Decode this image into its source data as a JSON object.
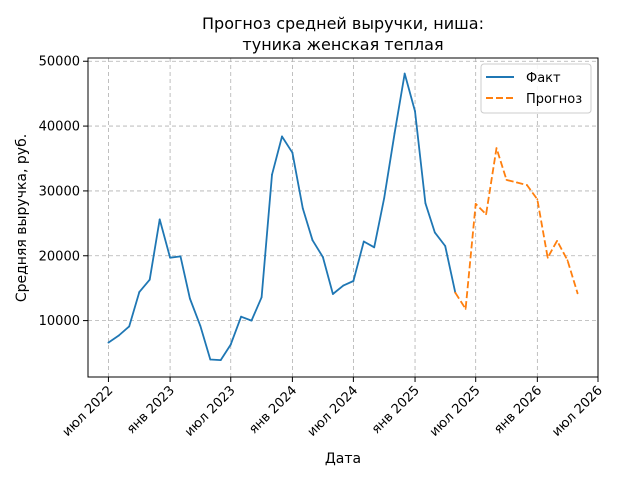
{
  "chart_data": {
    "type": "line",
    "title_lines": [
      "Прогноз средней выручки, ниша:",
      "туника женская теплая"
    ],
    "xlabel": "Дата",
    "ylabel": "Средняя выручка, руб.",
    "xlim": [
      "2022-05-01",
      "2026-07-01"
    ],
    "ylim": [
      1300,
      50500
    ],
    "x_ticks": [
      {
        "label": "июл 2022",
        "date": "2022-07-01"
      },
      {
        "label": "янв 2023",
        "date": "2023-01-01"
      },
      {
        "label": "июл 2023",
        "date": "2023-07-01"
      },
      {
        "label": "янв 2024",
        "date": "2024-01-01"
      },
      {
        "label": "июл 2024",
        "date": "2024-07-01"
      },
      {
        "label": "янв 2025",
        "date": "2025-01-01"
      },
      {
        "label": "июл 2025",
        "date": "2025-07-01"
      },
      {
        "label": "янв 2026",
        "date": "2026-01-01"
      },
      {
        "label": "июл 2026",
        "date": "2026-07-01"
      }
    ],
    "y_ticks": [
      {
        "label": "10000",
        "value": 10000
      },
      {
        "label": "20000",
        "value": 20000
      },
      {
        "label": "30000",
        "value": 30000
      },
      {
        "label": "40000",
        "value": 40000
      },
      {
        "label": "50000",
        "value": 50000
      }
    ],
    "grid": true,
    "legend_position": "top-right",
    "series": [
      {
        "name": "Факт",
        "color": "#1f77b4",
        "style": "solid",
        "points": [
          {
            "x": "2022-07-01",
            "y": 6600
          },
          {
            "x": "2022-08-01",
            "y": 7700
          },
          {
            "x": "2022-09-01",
            "y": 9100
          },
          {
            "x": "2022-10-01",
            "y": 14400
          },
          {
            "x": "2022-11-01",
            "y": 16300
          },
          {
            "x": "2022-12-01",
            "y": 25600
          },
          {
            "x": "2023-01-01",
            "y": 19700
          },
          {
            "x": "2023-02-01",
            "y": 19900
          },
          {
            "x": "2023-03-01",
            "y": 13400
          },
          {
            "x": "2023-04-01",
            "y": 9200
          },
          {
            "x": "2023-05-01",
            "y": 4000
          },
          {
            "x": "2023-06-01",
            "y": 3900
          },
          {
            "x": "2023-07-01",
            "y": 6300
          },
          {
            "x": "2023-08-01",
            "y": 10600
          },
          {
            "x": "2023-09-01",
            "y": 10000
          },
          {
            "x": "2023-10-01",
            "y": 13600
          },
          {
            "x": "2023-11-01",
            "y": 32500
          },
          {
            "x": "2023-12-01",
            "y": 38400
          },
          {
            "x": "2024-01-01",
            "y": 35900
          },
          {
            "x": "2024-02-01",
            "y": 27300
          },
          {
            "x": "2024-03-01",
            "y": 22400
          },
          {
            "x": "2024-04-01",
            "y": 19800
          },
          {
            "x": "2024-05-01",
            "y": 14100
          },
          {
            "x": "2024-06-01",
            "y": 15400
          },
          {
            "x": "2024-07-01",
            "y": 16100
          },
          {
            "x": "2024-08-01",
            "y": 22200
          },
          {
            "x": "2024-09-01",
            "y": 21300
          },
          {
            "x": "2024-10-01",
            "y": 28900
          },
          {
            "x": "2024-11-01",
            "y": 38900
          },
          {
            "x": "2024-12-01",
            "y": 48100
          },
          {
            "x": "2025-01-01",
            "y": 42300
          },
          {
            "x": "2025-02-01",
            "y": 28100
          },
          {
            "x": "2025-03-01",
            "y": 23600
          },
          {
            "x": "2025-04-01",
            "y": 21500
          },
          {
            "x": "2025-05-01",
            "y": 14300
          }
        ]
      },
      {
        "name": "Прогноз",
        "color": "#ff7f0e",
        "style": "dashed",
        "points": [
          {
            "x": "2025-05-01",
            "y": 14300
          },
          {
            "x": "2025-06-01",
            "y": 11800
          },
          {
            "x": "2025-07-01",
            "y": 28000
          },
          {
            "x": "2025-08-01",
            "y": 26400
          },
          {
            "x": "2025-09-01",
            "y": 36600
          },
          {
            "x": "2025-10-01",
            "y": 31700
          },
          {
            "x": "2025-11-01",
            "y": 31300
          },
          {
            "x": "2025-12-01",
            "y": 30900
          },
          {
            "x": "2026-01-01",
            "y": 28700
          },
          {
            "x": "2026-02-01",
            "y": 19700
          },
          {
            "x": "2026-03-01",
            "y": 22300
          },
          {
            "x": "2026-04-01",
            "y": 19300
          },
          {
            "x": "2026-05-01",
            "y": 14200
          }
        ]
      }
    ]
  }
}
